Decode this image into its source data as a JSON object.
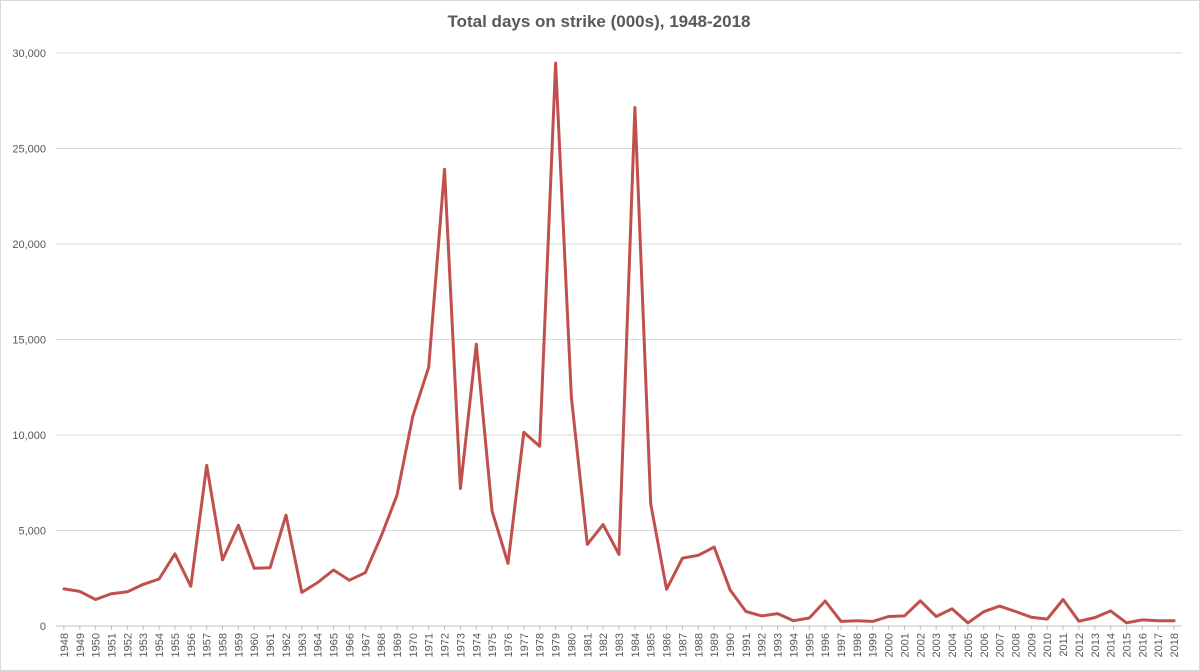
{
  "chart_data": {
    "type": "line",
    "title": "Total days on strike (000s), 1948-2018",
    "xlabel": "",
    "ylabel": "",
    "ylim": [
      0,
      30000
    ],
    "yticks": [
      0,
      5000,
      10000,
      15000,
      20000,
      25000,
      30000
    ],
    "ytick_labels": [
      "0",
      "5,000",
      "10,000",
      "15,000",
      "20,000",
      "25,000",
      "30,000"
    ],
    "grid": true,
    "line_color": "#c0504d",
    "categories": [
      "1948",
      "1949",
      "1950",
      "1951",
      "1952",
      "1953",
      "1954",
      "1955",
      "1956",
      "1957",
      "1958",
      "1959",
      "1960",
      "1961",
      "1962",
      "1963",
      "1964",
      "1965",
      "1966",
      "1967",
      "1968",
      "1969",
      "1970",
      "1971",
      "1972",
      "1973",
      "1974",
      "1975",
      "1976",
      "1977",
      "1978",
      "1979",
      "1980",
      "1981",
      "1982",
      "1983",
      "1984",
      "1985",
      "1986",
      "1987",
      "1988",
      "1989",
      "1990",
      "1991",
      "1992",
      "1993",
      "1994",
      "1995",
      "1996",
      "1997",
      "1998",
      "1999",
      "2000",
      "2001",
      "2002",
      "2003",
      "2004",
      "2005",
      "2006",
      "2007",
      "2008",
      "2009",
      "2010",
      "2011",
      "2012",
      "2013",
      "2014",
      "2015",
      "2016",
      "2017",
      "2018"
    ],
    "series": [
      {
        "values": [
          1940,
          1810,
          1390,
          1690,
          1790,
          2180,
          2460,
          3780,
          2080,
          8410,
          3460,
          5270,
          3020,
          3050,
          5800,
          1760,
          2280,
          2930,
          2400,
          2790,
          4690,
          6850,
          10980,
          13550,
          23910,
          7200,
          14750,
          6010,
          3280,
          10140,
          9410,
          29470,
          11960,
          4270,
          5310,
          3750,
          27140,
          6400,
          1920,
          3550,
          3700,
          4130,
          1900,
          760,
          530,
          650,
          280,
          420,
          1310,
          240,
          280,
          240,
          500,
          530,
          1320,
          500,
          900,
          160,
          750,
          1040,
          760,
          460,
          360,
          1390,
          250,
          440,
          790,
          170,
          320,
          280,
          280
        ]
      }
    ]
  }
}
